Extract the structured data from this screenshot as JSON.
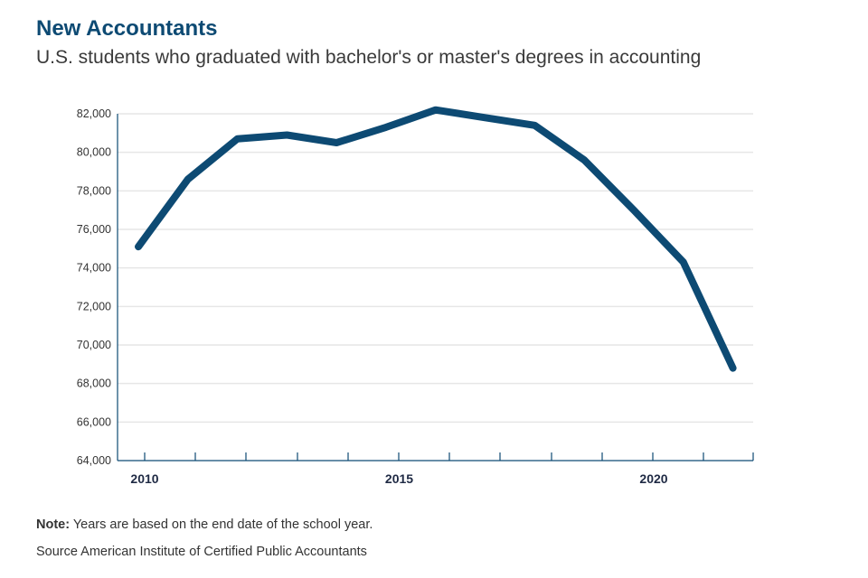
{
  "header": {
    "title": "New Accountants",
    "subtitle": "U.S. students who graduated with bachelor's or master's degrees in accounting"
  },
  "footer": {
    "note_label": "Note:",
    "note_text": " Years are based on the end date of the school year.",
    "source": "Source American Institute of Certified Public Accountants"
  },
  "colors": {
    "line": "#0d4a73",
    "grid": "#e6e6e6",
    "axis": "#0d4a73",
    "title": "#0d4a73"
  },
  "chart_data": {
    "type": "line",
    "title": "New Accountants",
    "subtitle": "U.S. students who graduated with bachelor's or master's degrees in accounting",
    "xlabel": "",
    "ylabel": "",
    "x": [
      2010,
      2011,
      2012,
      2013,
      2014,
      2015,
      2016,
      2017,
      2018,
      2019,
      2020,
      2021,
      2022
    ],
    "series": [
      {
        "values": [
          75100,
          78600,
          80700,
          80900,
          80500,
          81300,
          82200,
          81800,
          81400,
          79600,
          77000,
          74300,
          68800
        ]
      }
    ],
    "ylim": [
      64000,
      82000
    ],
    "y_ticks": [
      64000,
      66000,
      68000,
      70000,
      72000,
      74000,
      76000,
      78000,
      80000,
      82000
    ],
    "y_tick_labels": [
      "64,000",
      "66,000",
      "68,000",
      "70,000",
      "72,000",
      "74,000",
      "76,000",
      "78,000",
      "80,000",
      "82,000"
    ],
    "x_tick_labels": [
      {
        "year": 2010,
        "label": "2010"
      },
      {
        "year": 2015,
        "label": "2015"
      },
      {
        "year": 2020,
        "label": "2020"
      }
    ],
    "grid": true,
    "legend": "none"
  }
}
